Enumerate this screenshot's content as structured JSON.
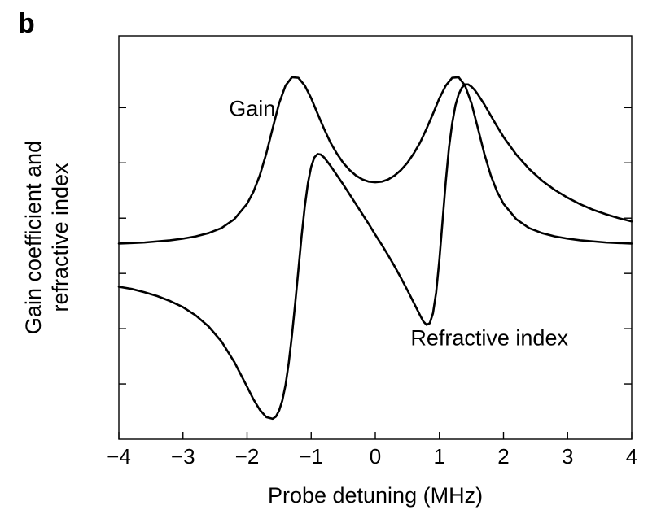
{
  "panel_label": "b",
  "chart_data": {
    "type": "line",
    "xlabel": "Probe detuning (MHz)",
    "ylabel_lines": [
      "Gain coefficient and",
      "refractive index"
    ],
    "xlim": [
      -4,
      4
    ],
    "ylim": [
      -3.5,
      3.8
    ],
    "x_ticks": [
      -4,
      -3,
      -2,
      -1,
      0,
      1,
      2,
      3,
      4
    ],
    "x_tick_labels": [
      "−4",
      "−3",
      "−2",
      "−1",
      "0",
      "1",
      "2",
      "3",
      "4"
    ],
    "y_ticks": [
      -2.5,
      -1.5,
      -0.5,
      0.5,
      1.5,
      2.5
    ],
    "y_tick_labels": [],
    "grid": false,
    "series": [
      {
        "name": "Gain",
        "label_at": [
          -1.92,
          2.35
        ],
        "x": [
          -4.0,
          -3.8,
          -3.6,
          -3.4,
          -3.2,
          -3.0,
          -2.8,
          -2.6,
          -2.4,
          -2.2,
          -2.0,
          -1.9,
          -1.8,
          -1.7,
          -1.6,
          -1.5,
          -1.4,
          -1.3,
          -1.2,
          -1.1,
          -1.0,
          -0.9,
          -0.8,
          -0.7,
          -0.6,
          -0.5,
          -0.4,
          -0.3,
          -0.2,
          -0.1,
          0.0,
          0.1,
          0.2,
          0.3,
          0.4,
          0.5,
          0.6,
          0.7,
          0.8,
          0.9,
          1.0,
          1.1,
          1.2,
          1.3,
          1.4,
          1.5,
          1.6,
          1.7,
          1.8,
          1.9,
          2.0,
          2.2,
          2.4,
          2.6,
          2.8,
          3.0,
          3.2,
          3.4,
          3.6,
          3.8,
          4.0
        ],
        "y": [
          0.04,
          0.05,
          0.06,
          0.08,
          0.1,
          0.13,
          0.17,
          0.23,
          0.32,
          0.48,
          0.76,
          0.98,
          1.28,
          1.67,
          2.13,
          2.58,
          2.9,
          3.05,
          3.04,
          2.9,
          2.67,
          2.39,
          2.12,
          1.87,
          1.67,
          1.5,
          1.37,
          1.27,
          1.2,
          1.16,
          1.15,
          1.16,
          1.2,
          1.27,
          1.37,
          1.5,
          1.67,
          1.87,
          2.12,
          2.39,
          2.67,
          2.9,
          3.04,
          3.05,
          2.9,
          2.58,
          2.13,
          1.67,
          1.28,
          0.98,
          0.76,
          0.48,
          0.32,
          0.23,
          0.17,
          0.13,
          0.1,
          0.08,
          0.06,
          0.05,
          0.04
        ]
      },
      {
        "name": "Refractive index",
        "label_at": [
          1.78,
          -1.8
        ],
        "x": [
          -4.0,
          -3.8,
          -3.6,
          -3.4,
          -3.2,
          -3.0,
          -2.8,
          -2.6,
          -2.4,
          -2.2,
          -2.0,
          -1.9,
          -1.8,
          -1.7,
          -1.6,
          -1.55,
          -1.5,
          -1.45,
          -1.4,
          -1.35,
          -1.3,
          -1.25,
          -1.2,
          -1.15,
          -1.1,
          -1.05,
          -1.0,
          -0.95,
          -0.9,
          -0.85,
          -0.8,
          -0.7,
          -0.6,
          -0.5,
          -0.4,
          -0.3,
          -0.2,
          -0.1,
          0.0,
          0.1,
          0.2,
          0.3,
          0.4,
          0.5,
          0.6,
          0.7,
          0.75,
          0.8,
          0.85,
          0.9,
          0.95,
          1.0,
          1.05,
          1.1,
          1.15,
          1.2,
          1.25,
          1.3,
          1.35,
          1.4,
          1.45,
          1.5,
          1.55,
          1.6,
          1.7,
          1.8,
          1.9,
          2.0,
          2.2,
          2.4,
          2.6,
          2.8,
          3.0,
          3.2,
          3.4,
          3.6,
          3.8,
          4.0
        ],
        "y": [
          -0.74,
          -0.78,
          -0.84,
          -0.91,
          -1.0,
          -1.11,
          -1.26,
          -1.46,
          -1.73,
          -2.1,
          -2.55,
          -2.78,
          -2.97,
          -3.1,
          -3.13,
          -3.09,
          -2.98,
          -2.8,
          -2.52,
          -2.12,
          -1.62,
          -1.05,
          -0.44,
          0.17,
          0.71,
          1.14,
          1.43,
          1.6,
          1.66,
          1.65,
          1.6,
          1.45,
          1.28,
          1.11,
          0.93,
          0.75,
          0.57,
          0.39,
          0.2,
          0.02,
          -0.17,
          -0.37,
          -0.58,
          -0.8,
          -1.03,
          -1.26,
          -1.37,
          -1.43,
          -1.4,
          -1.22,
          -0.84,
          -0.25,
          0.46,
          1.17,
          1.78,
          2.22,
          2.54,
          2.74,
          2.86,
          2.92,
          2.92,
          2.88,
          2.82,
          2.74,
          2.56,
          2.36,
          2.16,
          1.97,
          1.65,
          1.39,
          1.18,
          1.01,
          0.87,
          0.75,
          0.65,
          0.57,
          0.5,
          0.44
        ]
      }
    ]
  }
}
